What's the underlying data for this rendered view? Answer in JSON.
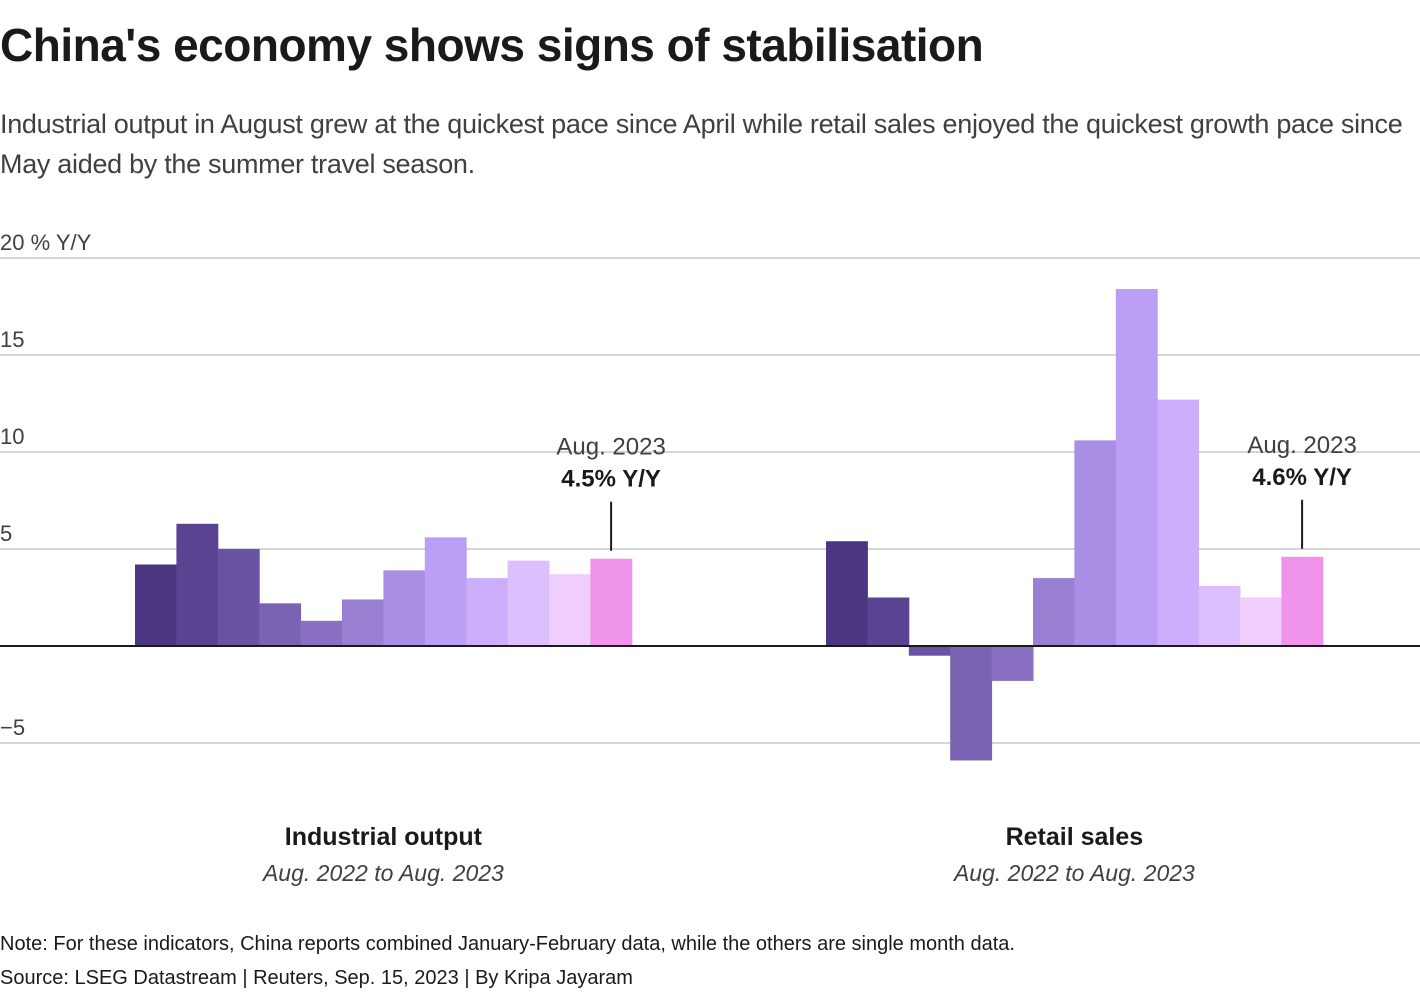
{
  "title": "China's economy shows signs of stabilisation",
  "subtitle": "Industrial output in August grew at the quickest pace since April while retail sales enjoyed the quickest growth pace since May aided by the summer travel season.",
  "note": "Note: For these indicators, China reports combined January-February data, while the others are single month data.",
  "source": "Source: LSEG Datastream | Reuters, Sep. 15, 2023 | By Kripa Jayaram",
  "colors": {
    "bars": [
      "#4b3682",
      "#5a4492",
      "#6a53a3",
      "#7b63b3",
      "#8a70c2",
      "#9980d3",
      "#a98ee6",
      "#bb9ef6",
      "#ccaefc",
      "#dcbffd",
      "#efcdfd",
      "#ef94ea"
    ],
    "grid": "#c8c8c8",
    "zero": "#1a1a1a"
  },
  "chart_data": {
    "type": "bar",
    "ylim": [
      -7,
      20
    ],
    "yticks": [
      {
        "value": 20,
        "label": "20 % Y/Y"
      },
      {
        "value": 15,
        "label": "15"
      },
      {
        "value": 10,
        "label": "10"
      },
      {
        "value": 5,
        "label": "5"
      },
      {
        "value": -5,
        "label": "−5"
      }
    ],
    "grid": true,
    "panels": [
      {
        "name": "Industrial output",
        "range": "Aug. 2022 to Aug. 2023",
        "values": [
          4.2,
          6.3,
          5.0,
          2.2,
          1.3,
          2.4,
          3.9,
          5.6,
          3.5,
          4.4,
          3.7,
          4.5
        ],
        "annotation": {
          "date": "Aug. 2023",
          "value": "4.5% Y/Y"
        }
      },
      {
        "name": "Retail sales",
        "range": "Aug. 2022 to Aug. 2023",
        "values": [
          5.4,
          2.5,
          -0.5,
          -5.9,
          -1.8,
          3.5,
          10.6,
          18.4,
          12.7,
          3.1,
          2.5,
          4.6
        ],
        "annotation": {
          "date": "Aug. 2023",
          "value": "4.6% Y/Y"
        }
      }
    ]
  }
}
